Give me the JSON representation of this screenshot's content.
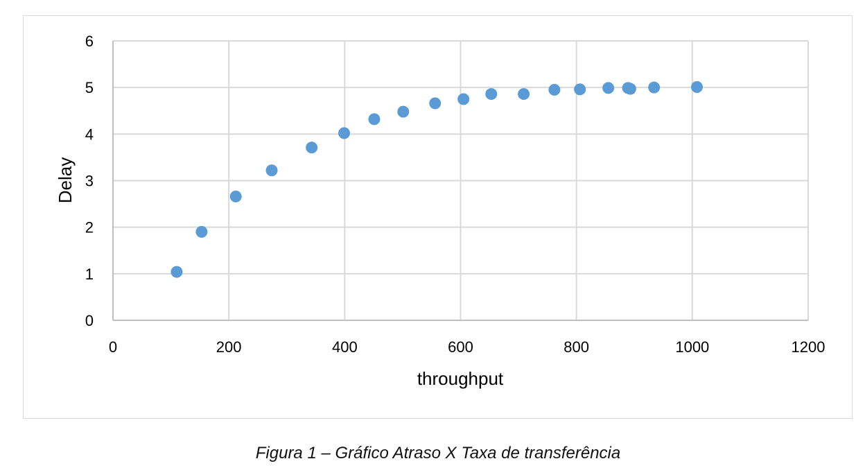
{
  "chart_data": {
    "type": "scatter",
    "xlabel": "throughput",
    "ylabel": "Delay",
    "xlim": [
      0,
      1200
    ],
    "ylim": [
      0,
      6
    ],
    "xticks": [
      0,
      200,
      400,
      600,
      800,
      1000,
      1200
    ],
    "yticks": [
      0,
      1,
      2,
      3,
      4,
      5,
      6
    ],
    "grid": true,
    "legend": "none",
    "marker_color": "#5b9bd5",
    "gridline_color": "#d9d9d9",
    "series": [
      {
        "points": [
          [
            110,
            1.04
          ],
          [
            153,
            1.9
          ],
          [
            212,
            2.66
          ],
          [
            274,
            3.22
          ],
          [
            343,
            3.71
          ],
          [
            399,
            4.02
          ],
          [
            451,
            4.32
          ],
          [
            501,
            4.48
          ],
          [
            556,
            4.66
          ],
          [
            605,
            4.75
          ],
          [
            653,
            4.86
          ],
          [
            709,
            4.86
          ],
          [
            762,
            4.95
          ],
          [
            806,
            4.96
          ],
          [
            855,
            4.99
          ],
          [
            889,
            4.99
          ],
          [
            893,
            4.97
          ],
          [
            934,
            5.0
          ],
          [
            1008,
            5.01
          ]
        ]
      }
    ]
  },
  "caption": "Figura 1 – Gráfico Atraso X Taxa de transferência"
}
